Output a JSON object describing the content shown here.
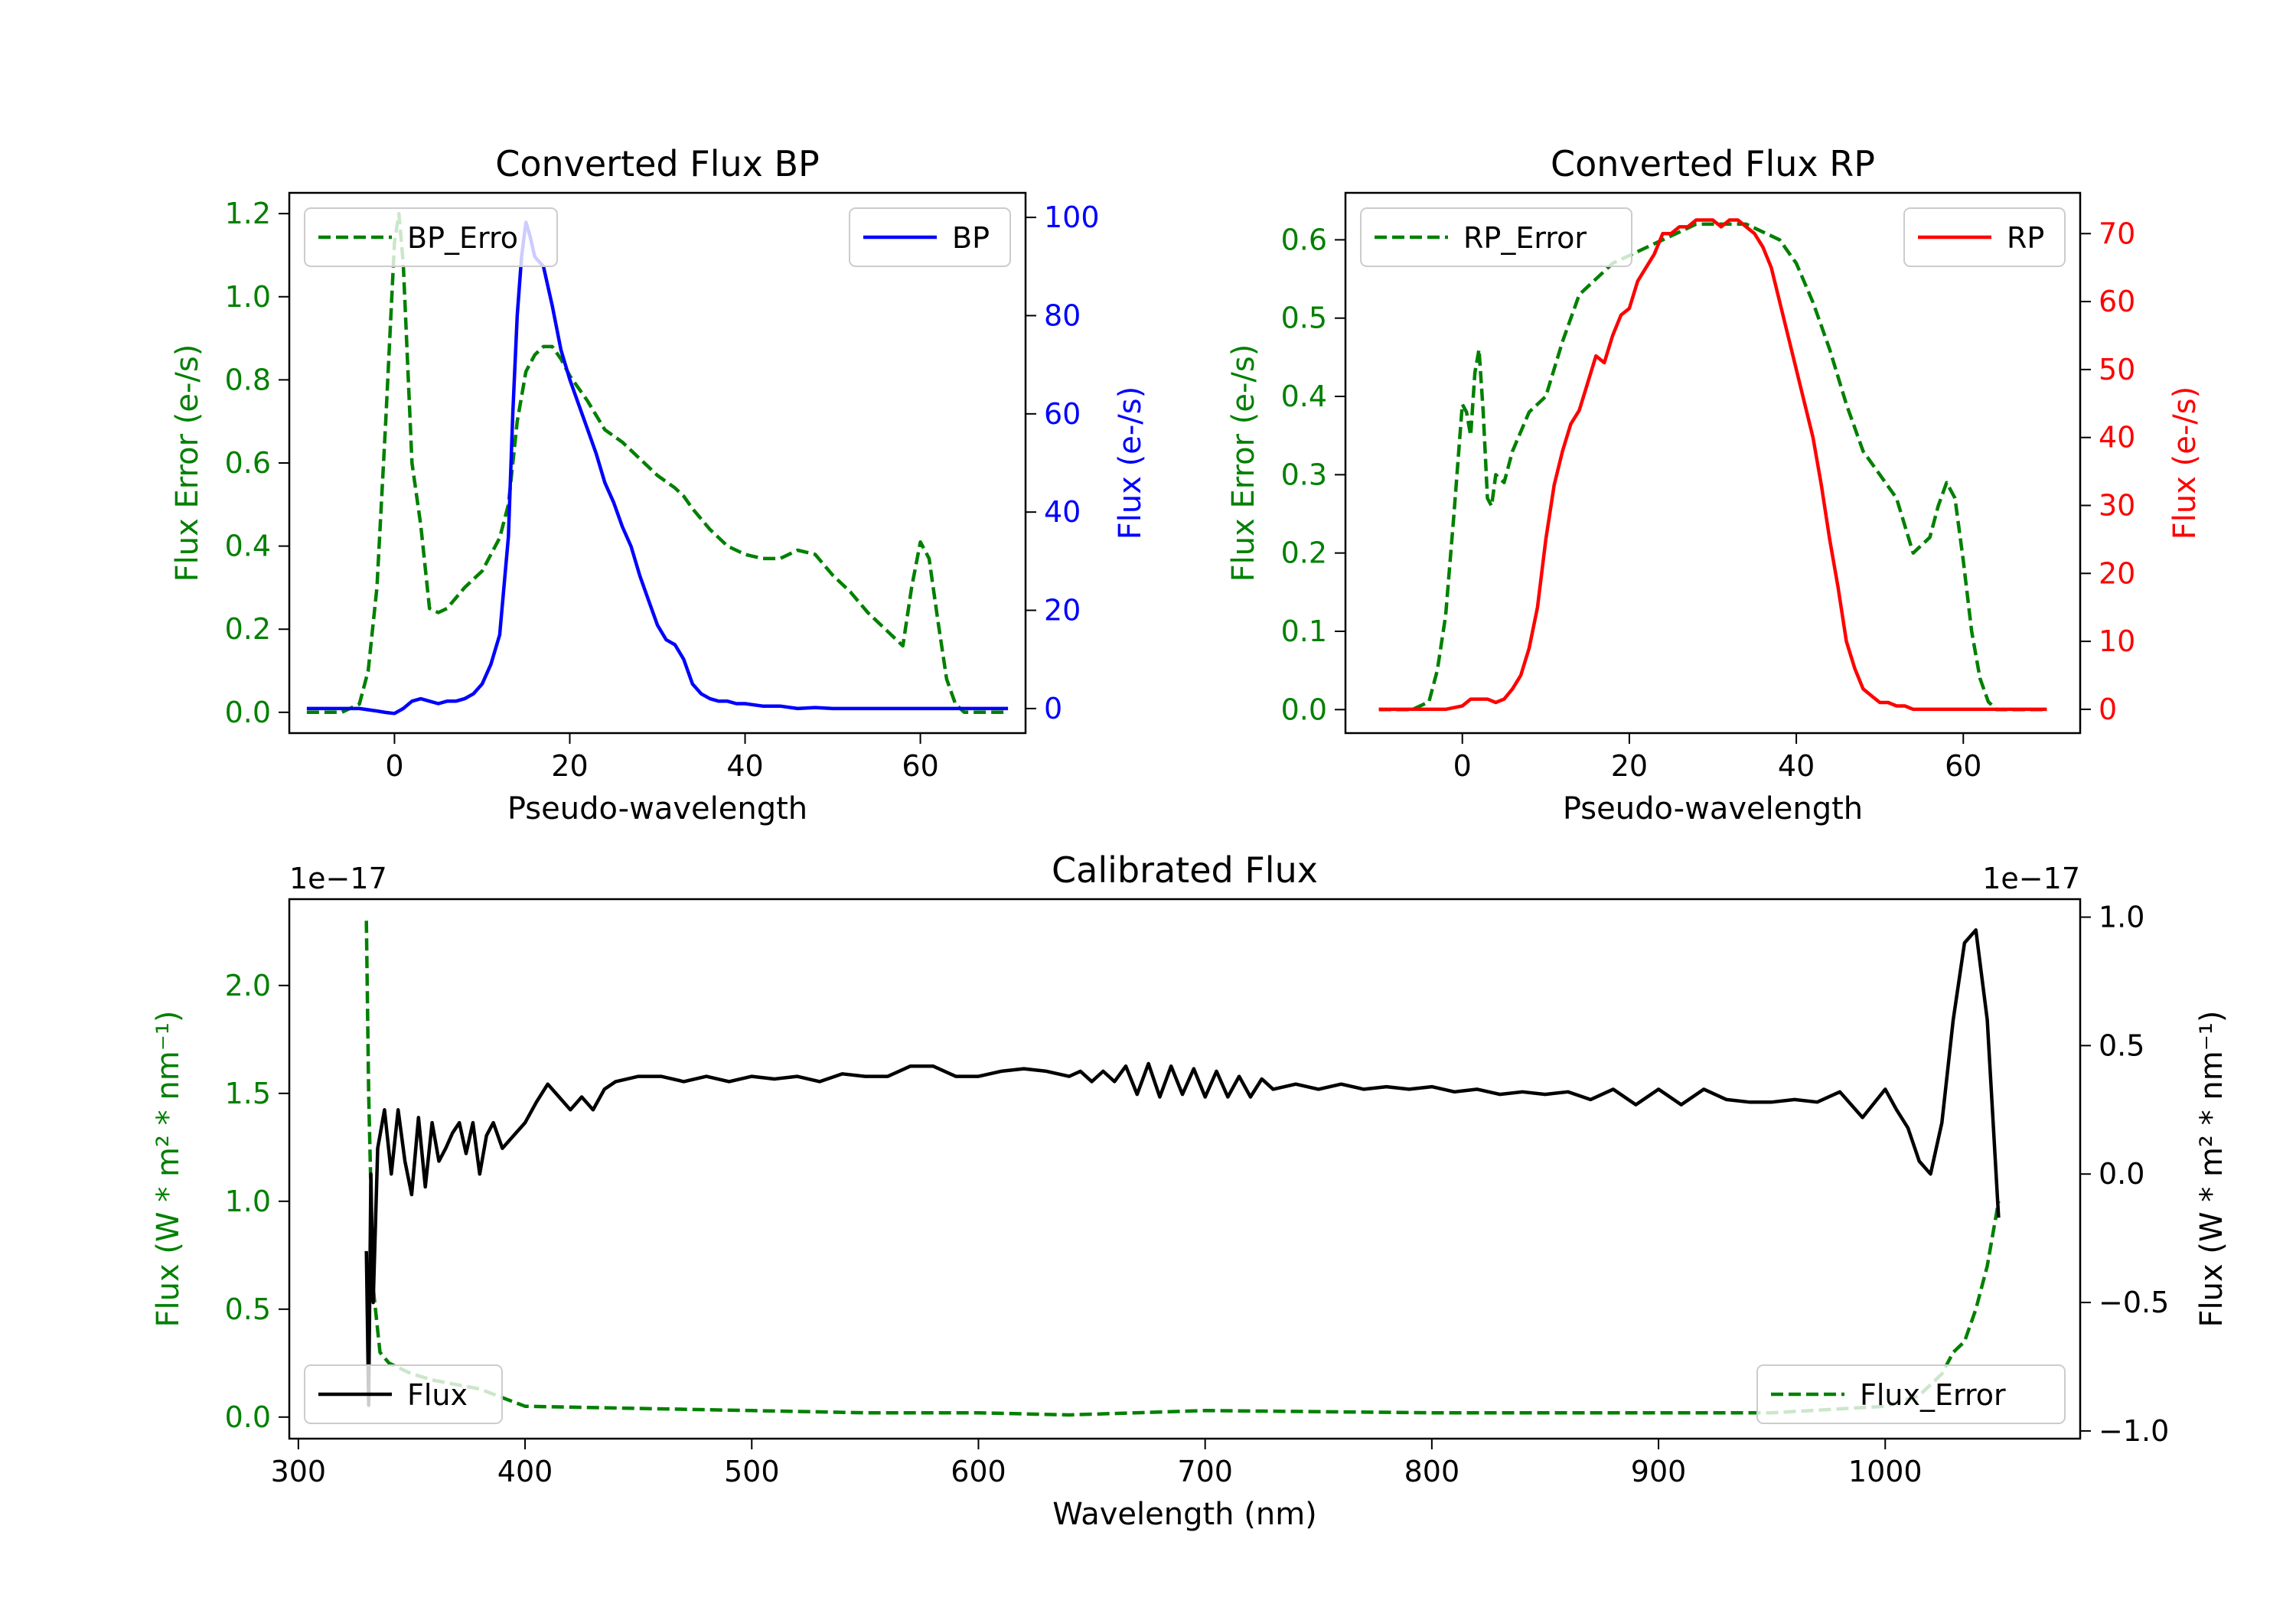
{
  "colors": {
    "error": "#008000",
    "bp": "#0000ff",
    "rp": "#ff0000",
    "flux": "#000000",
    "axis": "#000000"
  },
  "chart_data": [
    {
      "id": "bp",
      "type": "line",
      "title": "Converted Flux BP",
      "xlabel": "Pseudo-wavelength",
      "ylabel_left": "Flux Error (e-/s)",
      "ylabel_right": "Flux (e-/s)",
      "xlim": [
        -12,
        72
      ],
      "ylim_left": [
        -0.05,
        1.25
      ],
      "ylim_right": [
        -5,
        105
      ],
      "xticks": [
        0,
        20,
        40,
        60
      ],
      "yticks_left": [
        0.0,
        0.2,
        0.4,
        0.6,
        0.8,
        1.0,
        1.2
      ],
      "yticks_right": [
        0,
        20,
        40,
        60,
        80,
        100
      ],
      "legend_left": "BP_Erro",
      "legend_right": "BP",
      "series": [
        {
          "name": "BP_Error",
          "axis": "left",
          "style": "dashed",
          "x": [
            -10,
            -8,
            -6,
            -4,
            -3,
            -2,
            -1,
            0,
            0.5,
            1,
            2,
            3,
            4,
            5,
            6,
            8,
            10,
            12,
            13,
            14,
            15,
            16,
            17,
            18,
            19,
            20,
            22,
            24,
            26,
            28,
            30,
            32,
            33,
            34,
            36,
            38,
            40,
            42,
            44,
            46,
            48,
            50,
            52,
            54,
            56,
            57,
            58,
            59,
            60,
            61,
            62,
            63,
            64,
            65,
            66,
            68,
            70
          ],
          "y": [
            0,
            0,
            0,
            0.02,
            0.1,
            0.3,
            0.7,
            1.13,
            1.2,
            1.08,
            0.6,
            0.45,
            0.25,
            0.24,
            0.25,
            0.3,
            0.34,
            0.42,
            0.5,
            0.7,
            0.82,
            0.86,
            0.88,
            0.88,
            0.85,
            0.81,
            0.75,
            0.68,
            0.65,
            0.61,
            0.57,
            0.54,
            0.52,
            0.49,
            0.44,
            0.4,
            0.38,
            0.37,
            0.37,
            0.39,
            0.38,
            0.33,
            0.29,
            0.24,
            0.2,
            0.18,
            0.16,
            0.3,
            0.41,
            0.37,
            0.22,
            0.08,
            0.02,
            0,
            0,
            0,
            0
          ]
        },
        {
          "name": "BP",
          "axis": "right",
          "style": "solid",
          "x": [
            -10,
            -8,
            -6,
            -4,
            -2,
            -1,
            0,
            1,
            2,
            3,
            4,
            5,
            6,
            7,
            8,
            9,
            10,
            11,
            12,
            13,
            13.5,
            14,
            14.5,
            15,
            15.5,
            16,
            16.5,
            17,
            18,
            19,
            20,
            21,
            22,
            23,
            24,
            25,
            26,
            27,
            28,
            29,
            30,
            31,
            32,
            33,
            34,
            35,
            36,
            37,
            38,
            39,
            40,
            42,
            44,
            46,
            48,
            50,
            55,
            60,
            65,
            70
          ],
          "y": [
            0,
            0,
            0,
            0,
            -0.5,
            -0.8,
            -1,
            0,
            1.5,
            2,
            1.5,
            1,
            1.5,
            1.5,
            2,
            3,
            5,
            9,
            15,
            35,
            60,
            80,
            92,
            99,
            96,
            92,
            91,
            90,
            82,
            73,
            67,
            62,
            57,
            52,
            46,
            42,
            37,
            33,
            27,
            22,
            17,
            14,
            13,
            10,
            5,
            3,
            2,
            1.5,
            1.5,
            1,
            1,
            0.5,
            0.5,
            0,
            0.2,
            0,
            0,
            0,
            0,
            0
          ]
        }
      ]
    },
    {
      "id": "rp",
      "type": "line",
      "title": "Converted Flux RP",
      "xlabel": "Pseudo-wavelength",
      "ylabel_left": "Flux Error (e-/s)",
      "ylabel_right": "Flux (e-/s)",
      "xlim": [
        -14,
        74
      ],
      "ylim_left": [
        -0.03,
        0.66
      ],
      "ylim_right": [
        -3.5,
        76
      ],
      "xticks": [
        0,
        20,
        40,
        60
      ],
      "yticks_left": [
        0.0,
        0.1,
        0.2,
        0.3,
        0.4,
        0.5,
        0.6
      ],
      "yticks_right": [
        0,
        10,
        20,
        30,
        40,
        50,
        60,
        70
      ],
      "legend_left": "RP_Error",
      "legend_right": "RP",
      "series": [
        {
          "name": "RP_Error",
          "axis": "left",
          "style": "dashed",
          "x": [
            -10,
            -6,
            -4,
            -3,
            -2,
            -1,
            0,
            0.5,
            1,
            1.5,
            2,
            2.5,
            3,
            3.5,
            4,
            5,
            6,
            8,
            10,
            12,
            14,
            16,
            18,
            20,
            22,
            24,
            26,
            28,
            30,
            32,
            34,
            36,
            38,
            40,
            42,
            44,
            46,
            48,
            50,
            52,
            54,
            56,
            57,
            58,
            59,
            60,
            61,
            62,
            63,
            64,
            65,
            66,
            70
          ],
          "y": [
            0,
            0,
            0.01,
            0.05,
            0.12,
            0.25,
            0.39,
            0.38,
            0.35,
            0.43,
            0.46,
            0.38,
            0.27,
            0.26,
            0.3,
            0.29,
            0.33,
            0.38,
            0.4,
            0.47,
            0.53,
            0.55,
            0.57,
            0.58,
            0.59,
            0.6,
            0.61,
            0.62,
            0.62,
            0.62,
            0.62,
            0.61,
            0.6,
            0.57,
            0.52,
            0.46,
            0.39,
            0.33,
            0.3,
            0.27,
            0.2,
            0.22,
            0.26,
            0.29,
            0.27,
            0.19,
            0.1,
            0.04,
            0.01,
            0,
            0,
            0,
            0
          ]
        },
        {
          "name": "RP",
          "axis": "right",
          "style": "solid",
          "x": [
            -10,
            -4,
            -2,
            0,
            1,
            2,
            3,
            4,
            5,
            6,
            7,
            8,
            9,
            10,
            11,
            12,
            13,
            14,
            15,
            16,
            17,
            18,
            19,
            20,
            21,
            22,
            23,
            24,
            25,
            26,
            27,
            28,
            29,
            30,
            31,
            32,
            33,
            34,
            35,
            36,
            37,
            38,
            39,
            40,
            41,
            42,
            43,
            44,
            45,
            46,
            47,
            48,
            49,
            50,
            51,
            52,
            53,
            54,
            55,
            56,
            58,
            60,
            62,
            64,
            66,
            70
          ],
          "y": [
            0,
            0,
            0,
            0.5,
            1.5,
            1.5,
            1.5,
            1,
            1.5,
            3,
            5,
            9,
            15,
            25,
            33,
            38,
            42,
            44,
            48,
            52,
            51,
            55,
            58,
            59,
            63,
            65,
            67,
            70,
            70,
            71,
            71,
            72,
            72,
            72,
            71,
            72,
            72,
            71,
            70,
            68,
            65,
            60,
            55,
            50,
            45,
            40,
            33,
            25,
            18,
            10,
            6,
            3,
            2,
            1,
            1,
            0.5,
            0.5,
            0,
            0,
            0,
            0,
            0,
            0,
            0,
            0,
            0
          ]
        }
      ]
    },
    {
      "id": "calibrated",
      "type": "line",
      "title": "Calibrated Flux",
      "xlabel": "Wavelength (nm)",
      "ylabel_left": "Flux (W * m² * nm⁻¹)",
      "ylabel_right": "Flux (W * m² * nm⁻¹)",
      "offset_left": "1e−17",
      "offset_right": "1e−17",
      "xlim": [
        296,
        1086
      ],
      "ylim_left": [
        -0.1,
        2.4
      ],
      "ylim_right": [
        -1.03,
        1.07
      ],
      "xticks": [
        300,
        400,
        500,
        600,
        700,
        800,
        900,
        1000
      ],
      "yticks_left": [
        0.0,
        0.5,
        1.0,
        1.5,
        2.0
      ],
      "yticks_left_labels": [
        "0.0",
        "0.5",
        "1.0",
        "1.5",
        "2.0"
      ],
      "yticks_right": [
        -1.0,
        -0.5,
        0.0,
        0.5,
        1.0
      ],
      "yticks_right_labels": [
        "−1.0",
        "−0.5",
        "0.0",
        "0.5",
        "1.0"
      ],
      "legend_left": "Flux",
      "legend_right": "Flux_Error",
      "series": [
        {
          "name": "Flux_Error",
          "axis": "left",
          "style": "dashed",
          "x": [
            330,
            331,
            333,
            336,
            340,
            350,
            360,
            380,
            400,
            450,
            500,
            550,
            600,
            640,
            700,
            800,
            900,
            950,
            1000,
            1015,
            1025,
            1030,
            1035,
            1040,
            1045,
            1050
          ],
          "y": [
            2.3,
            1.5,
            0.6,
            0.3,
            0.25,
            0.2,
            0.17,
            0.13,
            0.05,
            0.04,
            0.03,
            0.02,
            0.02,
            0.01,
            0.03,
            0.02,
            0.02,
            0.02,
            0.05,
            0.1,
            0.2,
            0.3,
            0.35,
            0.5,
            0.7,
            1.0
          ]
        },
        {
          "name": "Flux",
          "axis": "right",
          "style": "solid",
          "x": [
            330,
            331,
            332,
            333,
            335,
            338,
            341,
            344,
            347,
            350,
            353,
            356,
            359,
            362,
            365,
            368,
            371,
            374,
            377,
            380,
            383,
            386,
            390,
            395,
            400,
            405,
            410,
            415,
            420,
            425,
            430,
            435,
            440,
            450,
            460,
            470,
            480,
            490,
            500,
            510,
            520,
            530,
            540,
            550,
            560,
            570,
            580,
            590,
            600,
            610,
            620,
            630,
            640,
            645,
            650,
            655,
            660,
            665,
            670,
            675,
            680,
            685,
            690,
            695,
            700,
            705,
            710,
            715,
            720,
            725,
            730,
            740,
            750,
            760,
            770,
            780,
            790,
            800,
            810,
            820,
            830,
            840,
            850,
            860,
            870,
            880,
            890,
            900,
            910,
            920,
            930,
            940,
            950,
            960,
            970,
            980,
            990,
            1000,
            1005,
            1010,
            1015,
            1020,
            1025,
            1030,
            1035,
            1040,
            1045,
            1050
          ],
          "y": [
            -0.3,
            -0.9,
            0.0,
            -0.5,
            0.1,
            0.25,
            0.0,
            0.25,
            0.05,
            -0.08,
            0.22,
            -0.05,
            0.2,
            0.05,
            0.1,
            0.16,
            0.2,
            0.08,
            0.2,
            0.0,
            0.15,
            0.2,
            0.1,
            0.15,
            0.2,
            0.28,
            0.35,
            0.3,
            0.25,
            0.3,
            0.25,
            0.33,
            0.36,
            0.38,
            0.38,
            0.36,
            0.38,
            0.36,
            0.38,
            0.37,
            0.38,
            0.36,
            0.39,
            0.38,
            0.38,
            0.42,
            0.42,
            0.38,
            0.38,
            0.4,
            0.41,
            0.4,
            0.38,
            0.4,
            0.36,
            0.4,
            0.36,
            0.42,
            0.31,
            0.43,
            0.3,
            0.42,
            0.31,
            0.41,
            0.3,
            0.4,
            0.3,
            0.38,
            0.3,
            0.37,
            0.33,
            0.35,
            0.33,
            0.35,
            0.33,
            0.34,
            0.33,
            0.34,
            0.32,
            0.33,
            0.31,
            0.32,
            0.31,
            0.32,
            0.29,
            0.33,
            0.27,
            0.33,
            0.27,
            0.33,
            0.29,
            0.28,
            0.28,
            0.29,
            0.28,
            0.32,
            0.22,
            0.33,
            0.25,
            0.18,
            0.05,
            0.0,
            0.2,
            0.6,
            0.9,
            0.95,
            0.6,
            -0.17
          ]
        }
      ]
    }
  ]
}
